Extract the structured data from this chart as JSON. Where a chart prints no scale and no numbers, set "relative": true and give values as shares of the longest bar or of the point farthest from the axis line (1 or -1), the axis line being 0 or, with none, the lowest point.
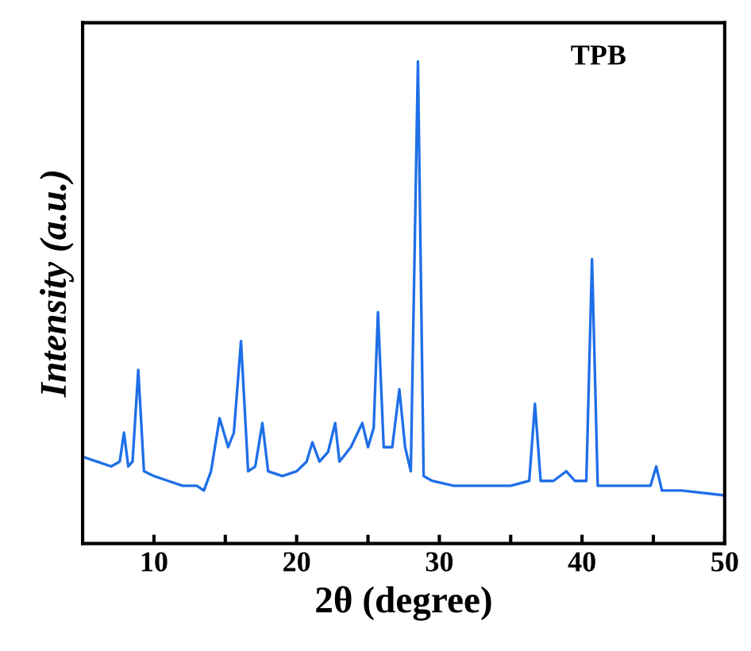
{
  "chart_data": {
    "type": "line",
    "relative": true,
    "xlabel": "2θ (degree)",
    "ylabel": "Intensity (a.u.)",
    "annotations": [
      "TPB"
    ],
    "xlim": [
      5,
      50
    ],
    "xticks": [
      10,
      {
        "value": 15,
        "label": null
      },
      20,
      {
        "value": 25,
        "label": null
      },
      30,
      {
        "value": 35,
        "label": null
      },
      40,
      {
        "value": 45,
        "label": null
      },
      50
    ],
    "ylim": [
      0,
      1.08
    ],
    "grid": false,
    "legend": false,
    "series": [
      {
        "color": "#1f6fe8",
        "x": [
          5,
          6,
          7,
          7.6,
          7.9,
          8.2,
          8.5,
          8.9,
          9.3,
          10,
          11,
          12,
          13,
          13.5,
          14,
          14.6,
          15.2,
          15.6,
          16.1,
          16.6,
          17.1,
          17.6,
          18,
          19,
          20,
          20.7,
          21.1,
          21.6,
          22.2,
          22.7,
          23,
          23.8,
          24.6,
          25,
          25.4,
          25.7,
          26.1,
          26.7,
          27.2,
          27.6,
          28,
          28.5,
          28.9,
          29.5,
          31,
          33,
          35,
          36.3,
          36.7,
          37.1,
          38,
          38.9,
          39.5,
          40.3,
          40.7,
          41.1,
          42,
          44,
          44.8,
          45.2,
          45.6,
          47,
          50
        ],
        "values": [
          0.18,
          0.17,
          0.16,
          0.17,
          0.23,
          0.16,
          0.17,
          0.36,
          0.15,
          0.14,
          0.13,
          0.12,
          0.12,
          0.11,
          0.15,
          0.26,
          0.2,
          0.23,
          0.42,
          0.15,
          0.16,
          0.25,
          0.15,
          0.14,
          0.15,
          0.17,
          0.21,
          0.17,
          0.19,
          0.25,
          0.17,
          0.2,
          0.25,
          0.2,
          0.24,
          0.48,
          0.2,
          0.2,
          0.32,
          0.2,
          0.15,
          1.0,
          0.14,
          0.13,
          0.12,
          0.12,
          0.12,
          0.13,
          0.29,
          0.13,
          0.13,
          0.15,
          0.13,
          0.13,
          0.59,
          0.12,
          0.12,
          0.12,
          0.12,
          0.16,
          0.11,
          0.11,
          0.1
        ]
      }
    ]
  }
}
